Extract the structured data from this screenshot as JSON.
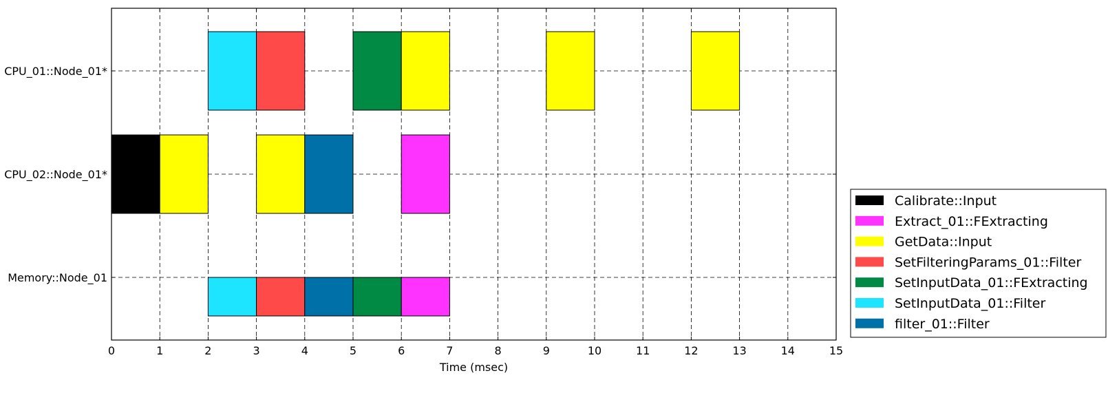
{
  "chart_data": {
    "type": "gantt",
    "title": "",
    "xlabel": "Time (msec)",
    "ylabel": "",
    "xlim": [
      0,
      15
    ],
    "x_ticks": [
      "0",
      "1",
      "2",
      "3",
      "4",
      "5",
      "6",
      "7",
      "8",
      "9",
      "10",
      "11",
      "12",
      "13",
      "14",
      "15"
    ],
    "grid": true,
    "legend_position": "right",
    "rows": [
      "CPU_01::Node_01*",
      "CPU_02::Node_01*",
      "Memory::Node_01"
    ],
    "legend": [
      {
        "name": "Calibrate::Input",
        "color": "#000000"
      },
      {
        "name": "Extract_01::FExtracting",
        "color": "#ff33ff"
      },
      {
        "name": "GetData::Input",
        "color": "#ffff00"
      },
      {
        "name": "SetFilteringParams_01::Filter",
        "color": "#ff4a4a"
      },
      {
        "name": "SetInputData_01::FExtracting",
        "color": "#008a43"
      },
      {
        "name": "SetInputData_01::Filter",
        "color": "#1ee5ff"
      },
      {
        "name": "filter_01::Filter",
        "color": "#0070a8"
      }
    ],
    "tasks": [
      {
        "row": "CPU_01::Node_01*",
        "task": "SetInputData_01::Filter",
        "start": 2,
        "end": 3
      },
      {
        "row": "CPU_01::Node_01*",
        "task": "SetFilteringParams_01::Filter",
        "start": 3,
        "end": 4
      },
      {
        "row": "CPU_01::Node_01*",
        "task": "SetInputData_01::FExtracting",
        "start": 5,
        "end": 6
      },
      {
        "row": "CPU_01::Node_01*",
        "task": "GetData::Input",
        "start": 6,
        "end": 7
      },
      {
        "row": "CPU_01::Node_01*",
        "task": "GetData::Input",
        "start": 9,
        "end": 10
      },
      {
        "row": "CPU_01::Node_01*",
        "task": "GetData::Input",
        "start": 12,
        "end": 13
      },
      {
        "row": "CPU_02::Node_01*",
        "task": "Calibrate::Input",
        "start": 0,
        "end": 1
      },
      {
        "row": "CPU_02::Node_01*",
        "task": "GetData::Input",
        "start": 1,
        "end": 2
      },
      {
        "row": "CPU_02::Node_01*",
        "task": "GetData::Input",
        "start": 3,
        "end": 4
      },
      {
        "row": "CPU_02::Node_01*",
        "task": "filter_01::Filter",
        "start": 4,
        "end": 5
      },
      {
        "row": "CPU_02::Node_01*",
        "task": "Extract_01::FExtracting",
        "start": 6,
        "end": 7
      },
      {
        "row": "Memory::Node_01",
        "task": "SetInputData_01::Filter",
        "start": 2,
        "end": 3
      },
      {
        "row": "Memory::Node_01",
        "task": "SetFilteringParams_01::Filter",
        "start": 3,
        "end": 4
      },
      {
        "row": "Memory::Node_01",
        "task": "filter_01::Filter",
        "start": 4,
        "end": 5
      },
      {
        "row": "Memory::Node_01",
        "task": "SetInputData_01::FExtracting",
        "start": 5,
        "end": 6
      },
      {
        "row": "Memory::Node_01",
        "task": "Extract_01::FExtracting",
        "start": 6,
        "end": 7
      }
    ]
  }
}
